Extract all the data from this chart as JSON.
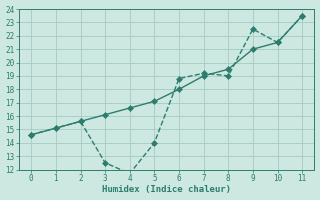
{
  "x": [
    0,
    1,
    2,
    3,
    4,
    5,
    6,
    7,
    8,
    9,
    10,
    11
  ],
  "line1_y": [
    14.6,
    15.1,
    15.6,
    16.1,
    16.6,
    17.1,
    18.0,
    19.0,
    19.5,
    21.0,
    21.5,
    23.5
  ],
  "line2_y": [
    14.6,
    15.1,
    15.6,
    12.5,
    11.7,
    14.0,
    18.8,
    19.2,
    19.0,
    22.5,
    21.5,
    23.5
  ],
  "line_color": "#2d7d6e",
  "bg_color": "#cce8e0",
  "grid_color": "#aacec6",
  "xlabel": "Humidex (Indice chaleur)",
  "ylim": [
    12,
    24
  ],
  "xlim": [
    -0.5,
    11.5
  ],
  "yticks": [
    12,
    13,
    14,
    15,
    16,
    17,
    18,
    19,
    20,
    21,
    22,
    23,
    24
  ],
  "xticks": [
    0,
    1,
    2,
    3,
    4,
    5,
    6,
    7,
    8,
    9,
    10,
    11
  ],
  "markersize": 3,
  "linewidth": 1.0
}
